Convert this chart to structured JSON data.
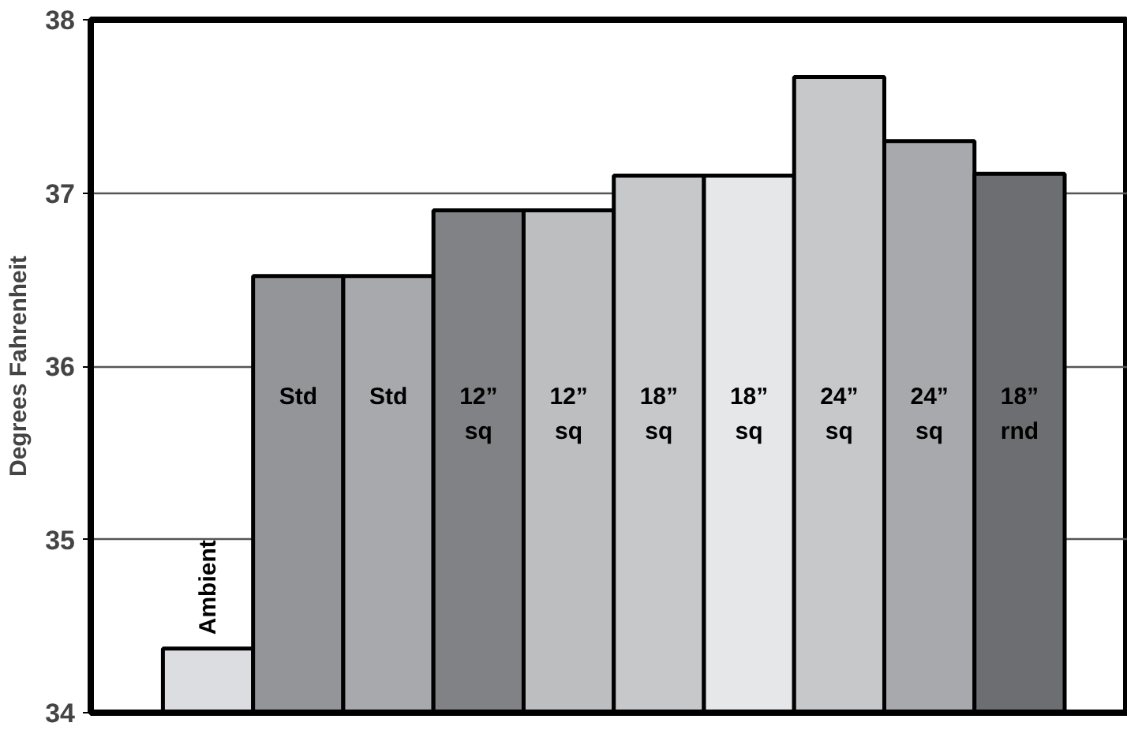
{
  "chart_data": {
    "type": "bar",
    "ylabel": "Degrees Fahrenheit",
    "categories": [
      "Ambient",
      "Std",
      "Std",
      "12”\nsq",
      "12”\nsq",
      "18”\nsq",
      "18”\nsq",
      "24”\nsq",
      "24”\nsq",
      "18”\nrnd"
    ],
    "values": [
      34.37,
      36.52,
      36.52,
      36.9,
      36.9,
      37.1,
      37.1,
      37.67,
      37.3,
      37.11
    ],
    "colors": [
      "#dcdde0",
      "#939598",
      "#a7a9ac",
      "#808285",
      "#bcbec0",
      "#c7c8ca",
      "#e6e7e8",
      "#c7c8ca",
      "#a7a9ac",
      "#6d6e71"
    ],
    "ylim": [
      34,
      38
    ],
    "yticks": [
      34,
      35,
      36,
      37,
      38
    ],
    "grid": "y",
    "tick_labels": "y"
  }
}
